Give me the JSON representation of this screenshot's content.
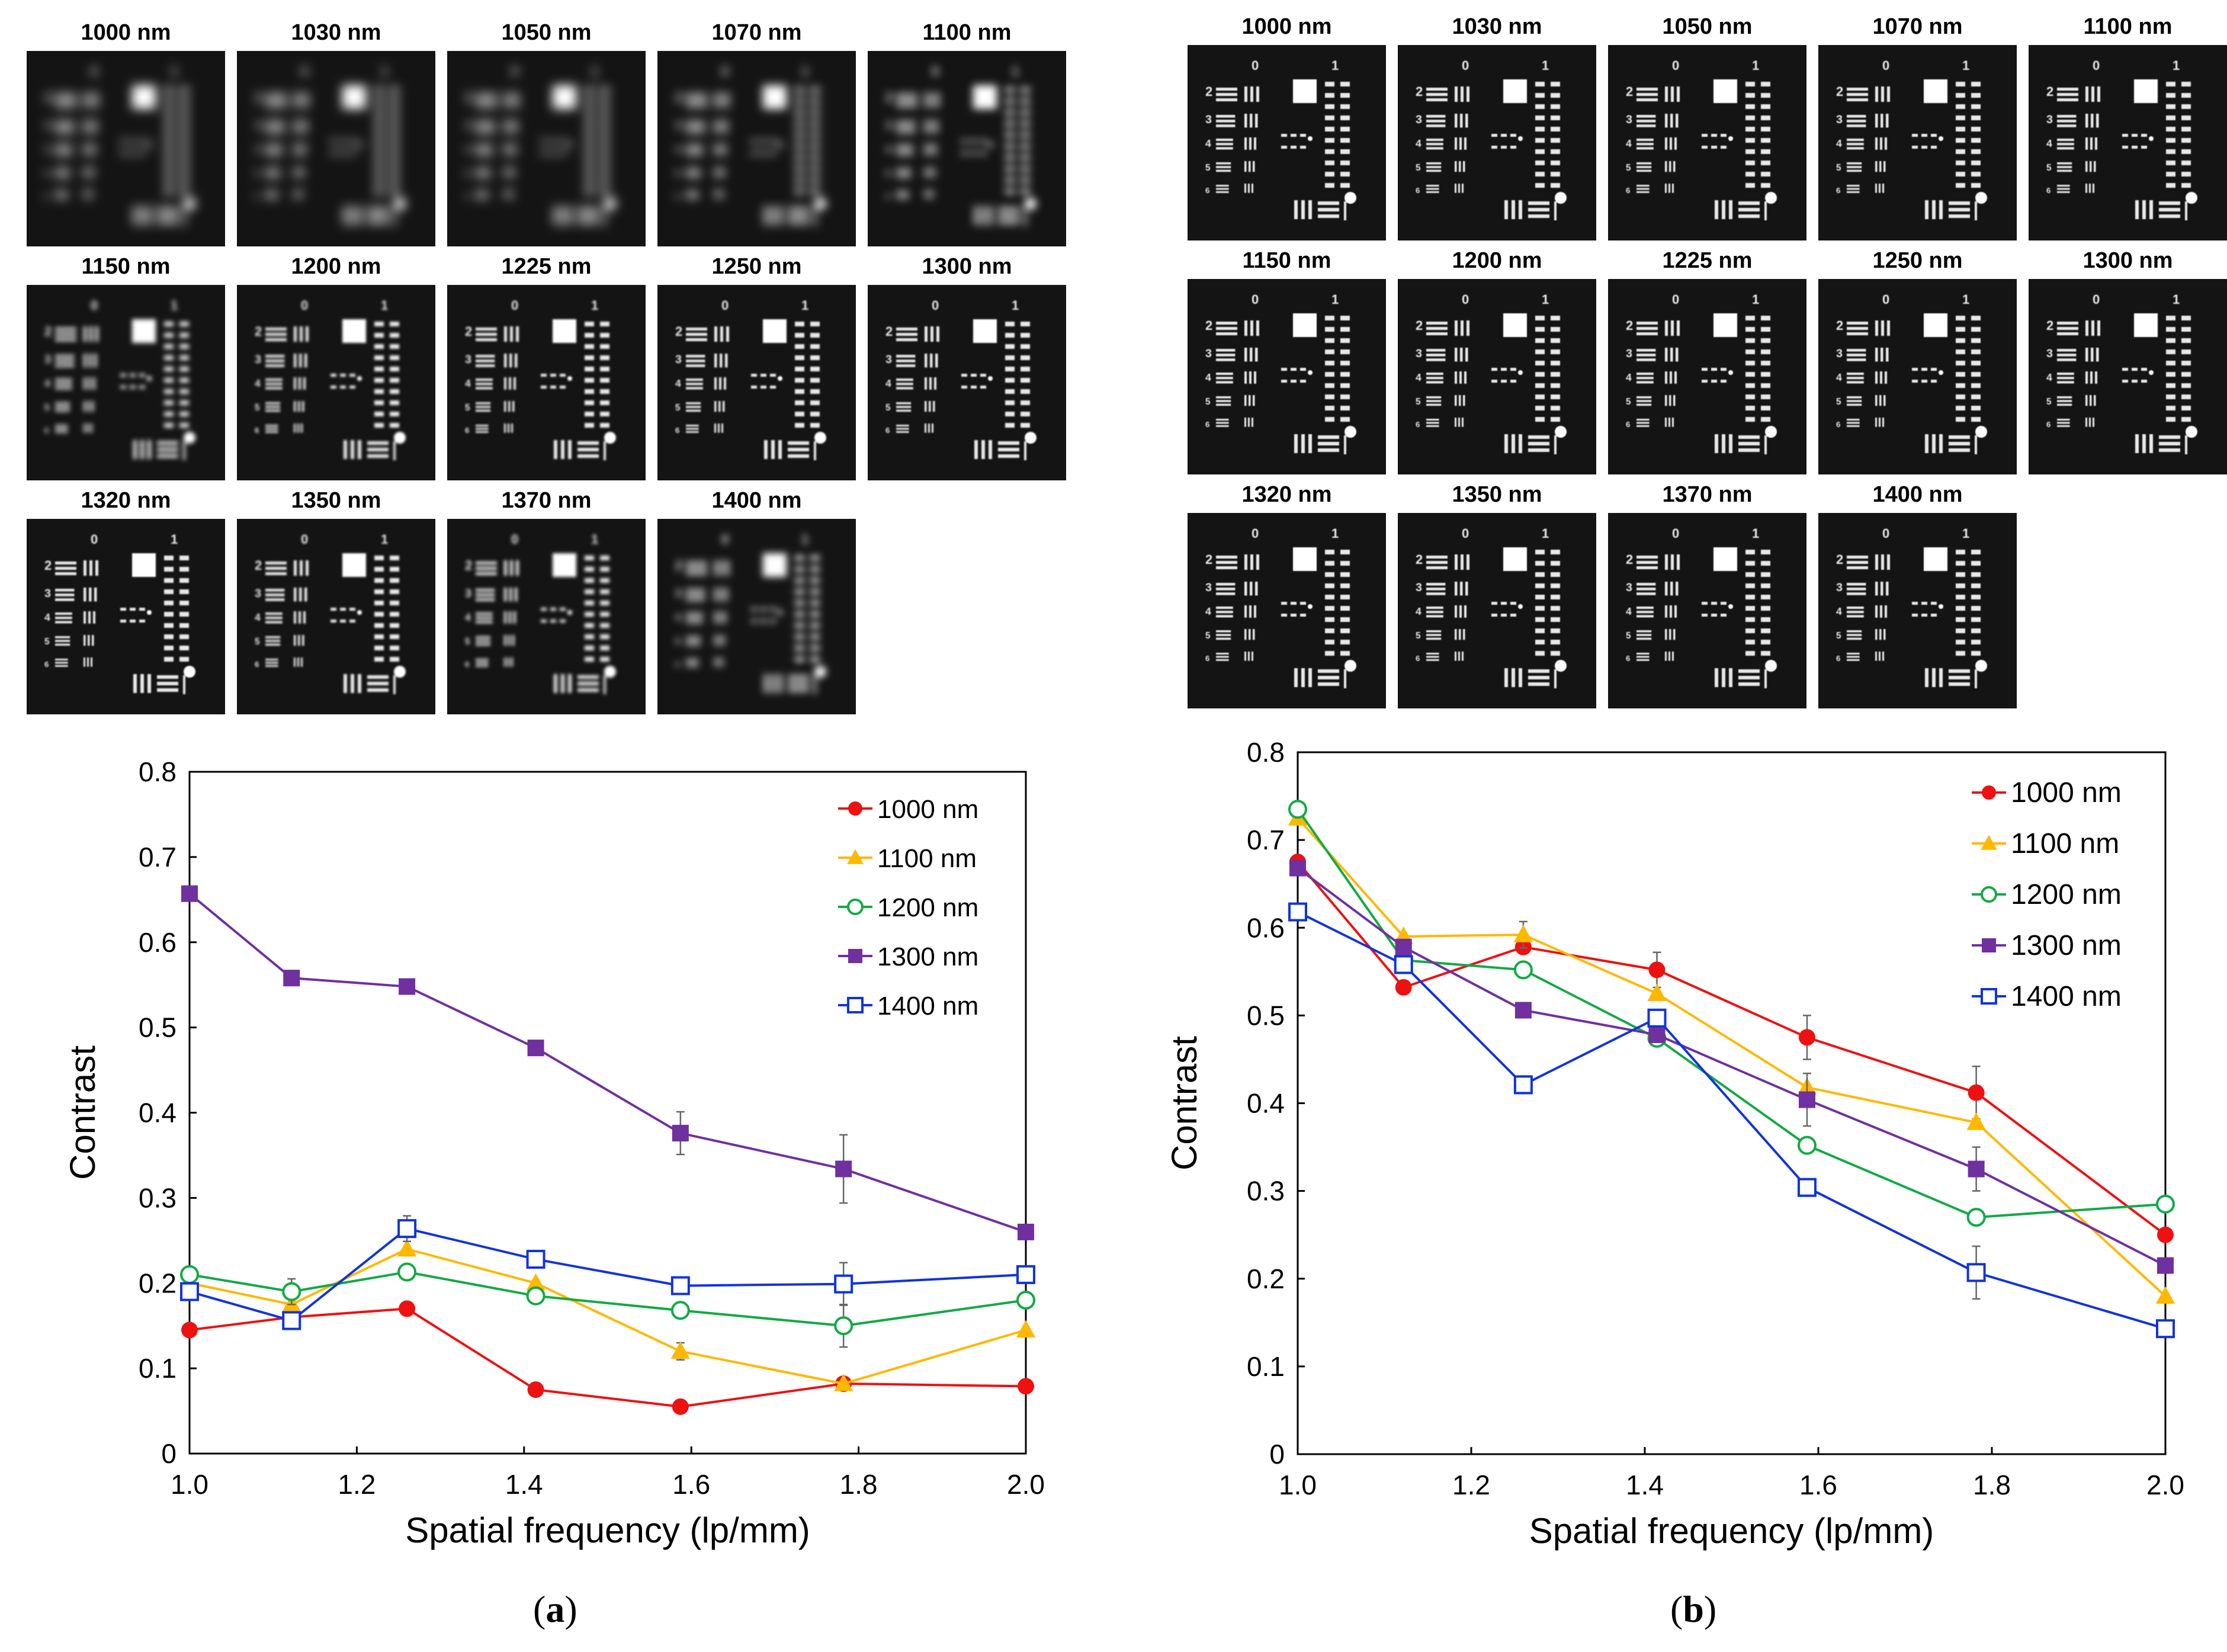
{
  "panels": [
    {
      "id": "a",
      "caption_letter": "a",
      "tile_labels": [
        "1000 nm",
        "1030 nm",
        "1050 nm",
        "1070 nm",
        "1100 nm",
        "1150 nm",
        "1200 nm",
        "1225 nm",
        "1250 nm",
        "1300 nm",
        "1320 nm",
        "1350 nm",
        "1370 nm",
        "1400 nm"
      ],
      "tile_blur": [
        9,
        9,
        9,
        8,
        7,
        4,
        2,
        1.5,
        1.2,
        1,
        1,
        1.5,
        3,
        6
      ]
    },
    {
      "id": "b",
      "caption_letter": "b",
      "tile_labels": [
        "1000 nm",
        "1030 nm",
        "1050 nm",
        "1070 nm",
        "1100 nm",
        "1150 nm",
        "1200 nm",
        "1225 nm",
        "1250 nm",
        "1300 nm",
        "1320 nm",
        "1350 nm",
        "1370 nm",
        "1400 nm"
      ],
      "tile_blur": [
        0.8,
        0.8,
        0.8,
        0.8,
        0.8,
        0.8,
        0.8,
        0.8,
        0.8,
        0.8,
        0.8,
        0.8,
        0.8,
        0.8
      ]
    }
  ],
  "tile_glyphs": {
    "top_left_num": "0",
    "top_right_num": "1",
    "group_nums": [
      "2",
      "3",
      "4",
      "5",
      "6"
    ]
  },
  "chart_data": [
    {
      "type": "line",
      "title": "",
      "xlabel": "Spatial frequency (lp/mm)",
      "ylabel": "Contrast",
      "xlim": [
        1.0,
        2.0
      ],
      "ylim": [
        0,
        0.8
      ],
      "xticks": [
        "1.0",
        "1.2",
        "1.4",
        "1.6",
        "1.8",
        "2.0"
      ],
      "yticks": [
        "0",
        "0.1",
        "0.2",
        "0.3",
        "0.4",
        "0.5",
        "0.6",
        "0.7",
        "0.8"
      ],
      "legend": "top-right",
      "x": [
        1.0,
        1.122,
        1.26,
        1.414,
        1.587,
        1.782,
        2.0
      ],
      "series": [
        {
          "name": "1000 nm",
          "color": "#ee1111",
          "marker": "circle-filled",
          "values": [
            0.145,
            0.16,
            0.17,
            0.075,
            0.055,
            0.082,
            0.079
          ],
          "err": [
            0,
            0,
            0,
            0,
            0,
            0,
            0
          ]
        },
        {
          "name": "1100 nm",
          "color": "#ffb800",
          "marker": "triangle-filled",
          "values": [
            0.2,
            0.175,
            0.24,
            0.2,
            0.12,
            0.082,
            0.145
          ],
          "err": [
            0,
            0,
            0,
            0,
            0.01,
            0,
            0
          ]
        },
        {
          "name": "1200 nm",
          "color": "#11aa44",
          "marker": "circle-open",
          "values": [
            0.21,
            0.19,
            0.213,
            0.185,
            0.168,
            0.15,
            0.18
          ],
          "err": [
            0,
            0.015,
            0,
            0,
            0,
            0.025,
            0
          ]
        },
        {
          "name": "1300 nm",
          "color": "#7030a0",
          "marker": "square-filled",
          "values": [
            0.657,
            0.558,
            0.548,
            0.476,
            0.376,
            0.334,
            0.26
          ],
          "err": [
            0,
            0,
            0,
            0,
            0.025,
            0.04,
            0
          ]
        },
        {
          "name": "1400 nm",
          "color": "#1133dd",
          "marker": "square-open",
          "values": [
            0.19,
            0.156,
            0.264,
            0.228,
            0.197,
            0.199,
            0.21
          ],
          "err": [
            0,
            0,
            0.015,
            0,
            0,
            0.025,
            0
          ]
        }
      ]
    },
    {
      "type": "line",
      "title": "",
      "xlabel": "Spatial frequency (lp/mm)",
      "ylabel": "Contrast",
      "xlim": [
        1.0,
        2.0
      ],
      "ylim": [
        0,
        0.8
      ],
      "xticks": [
        "1.0",
        "1.2",
        "1.4",
        "1.6",
        "1.8",
        "2.0"
      ],
      "yticks": [
        "0",
        "0.1",
        "0.2",
        "0.3",
        "0.4",
        "0.5",
        "0.6",
        "0.7",
        "0.8"
      ],
      "legend": "top-right",
      "x": [
        1.0,
        1.122,
        1.26,
        1.414,
        1.587,
        1.782,
        2.0
      ],
      "series": [
        {
          "name": "1000 nm",
          "color": "#ee1111",
          "marker": "circle-filled",
          "values": [
            0.675,
            0.532,
            0.578,
            0.552,
            0.475,
            0.412,
            0.25
          ],
          "err": [
            0,
            0,
            0,
            0.02,
            0.025,
            0.03,
            0
          ]
        },
        {
          "name": "1100 nm",
          "color": "#ffb800",
          "marker": "triangle-filled",
          "values": [
            0.725,
            0.59,
            0.592,
            0.525,
            0.418,
            0.378,
            0.18
          ],
          "err": [
            0,
            0,
            0.015,
            0,
            0,
            0,
            0
          ]
        },
        {
          "name": "1200 nm",
          "color": "#11aa44",
          "marker": "circle-open",
          "values": [
            0.735,
            0.563,
            0.552,
            0.474,
            0.352,
            0.27,
            0.285
          ],
          "err": [
            0,
            0,
            0,
            0,
            0,
            0,
            0
          ]
        },
        {
          "name": "1300 nm",
          "color": "#7030a0",
          "marker": "square-filled",
          "values": [
            0.668,
            0.578,
            0.506,
            0.478,
            0.404,
            0.325,
            0.215
          ],
          "err": [
            0,
            0,
            0,
            0,
            0.03,
            0.025,
            0
          ]
        },
        {
          "name": "1400 nm",
          "color": "#1133dd",
          "marker": "square-open",
          "values": [
            0.618,
            0.558,
            0.421,
            0.497,
            0.304,
            0.207,
            0.143
          ],
          "err": [
            0,
            0,
            0.01,
            0,
            0,
            0.03,
            0
          ]
        }
      ]
    }
  ]
}
